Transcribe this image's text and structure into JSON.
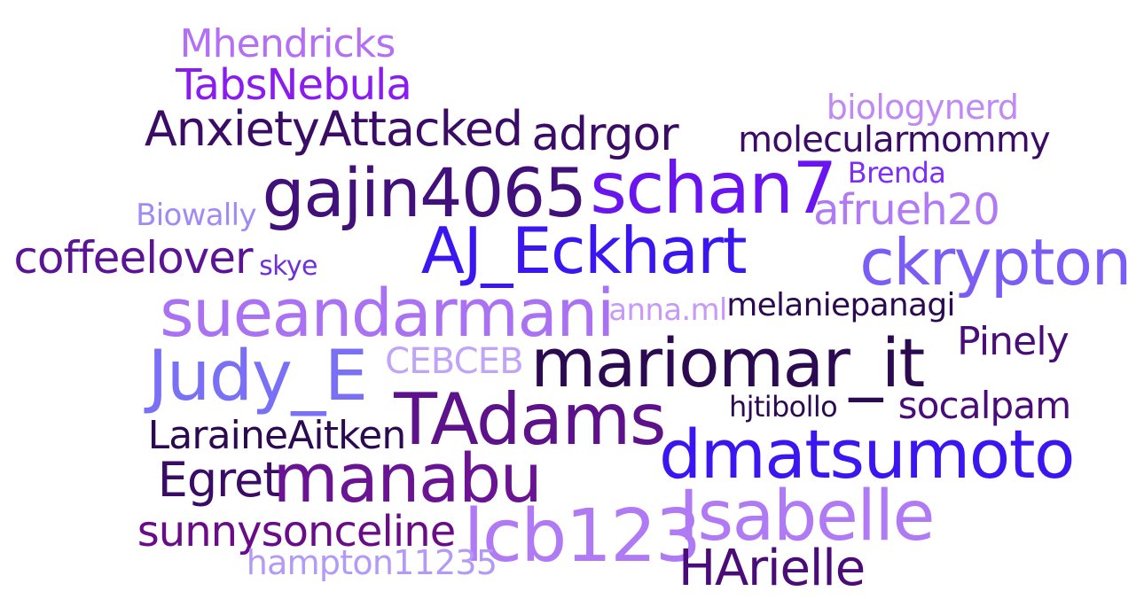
{
  "words": [
    {
      "id": "mhendricks",
      "text": "Mhendricks",
      "color": "#b370f5"
    },
    {
      "id": "tabsnebula",
      "text": "TabsNebula",
      "color": "#8a1cf0"
    },
    {
      "id": "anxietyattacked",
      "text": "AnxietyAttacked",
      "color": "#3a0c66"
    },
    {
      "id": "adrgor",
      "text": "adrgor",
      "color": "#3a0c66"
    },
    {
      "id": "biologynerd",
      "text": "biologynerd",
      "color": "#c08af5"
    },
    {
      "id": "molecularmommy",
      "text": "molecularmommy",
      "color": "#3a0c66"
    },
    {
      "id": "gajin4065",
      "text": "gajin4065",
      "color": "#42107a"
    },
    {
      "id": "schan7",
      "text": "schan7",
      "color": "#6a14f0"
    },
    {
      "id": "brenda",
      "text": "Brenda",
      "color": "#7b2ff7"
    },
    {
      "id": "biowally",
      "text": "Biowally",
      "color": "#a28af5"
    },
    {
      "id": "afrueh20",
      "text": "afrueh20",
      "color": "#b07af5"
    },
    {
      "id": "coffeelover",
      "text": "coffeelover",
      "color": "#5a1494"
    },
    {
      "id": "skye",
      "text": "skye",
      "color": "#7030d8"
    },
    {
      "id": "aj-eckhart",
      "text": "AJ_Eckhart",
      "color": "#3b16f0"
    },
    {
      "id": "ckrypton",
      "text": "ckrypton",
      "color": "#7b5cf5"
    },
    {
      "id": "sueandarmani",
      "text": "sueandarmani",
      "color": "#aa72f2"
    },
    {
      "id": "anna-ml",
      "text": "anna.ml",
      "color": "#c89af7"
    },
    {
      "id": "melaniepanagi",
      "text": "melaniepanagi",
      "color": "#2c0a52"
    },
    {
      "id": "judy-e",
      "text": "Judy_E",
      "color": "#7a70f5"
    },
    {
      "id": "cebceb",
      "text": "CEBCEB",
      "color": "#c0a4f7"
    },
    {
      "id": "mariomar-it",
      "text": "mariomar_it",
      "color": "#2c0a52"
    },
    {
      "id": "pinely",
      "text": "Pinely",
      "color": "#4a0c78"
    },
    {
      "id": "hjtibollo",
      "text": "hjtibollo",
      "color": "#2c0a52"
    },
    {
      "id": "socalpam",
      "text": "socalpam",
      "color": "#4a0c78"
    },
    {
      "id": "tadams",
      "text": "TAdams",
      "color": "#5d118a"
    },
    {
      "id": "laraineaitken",
      "text": "LaraineAitken",
      "color": "#2c0a52"
    },
    {
      "id": "dmatsumoto",
      "text": "dmatsumoto",
      "color": "#3b16f0"
    },
    {
      "id": "egret",
      "text": "Egret",
      "color": "#3a0c66"
    },
    {
      "id": "manabu",
      "text": "manabu",
      "color": "#6a1494"
    },
    {
      "id": "isabelle",
      "text": "Isabelle",
      "color": "#b07af5"
    },
    {
      "id": "sunnysonceline",
      "text": "sunnysonceline",
      "color": "#6a0c88"
    },
    {
      "id": "lcb123",
      "text": "lcb123",
      "color": "#b07af5"
    },
    {
      "id": "hampton11235",
      "text": "hampton11235",
      "color": "#b39af7"
    },
    {
      "id": "harielle",
      "text": "HArielle",
      "color": "#4a0c78"
    }
  ]
}
